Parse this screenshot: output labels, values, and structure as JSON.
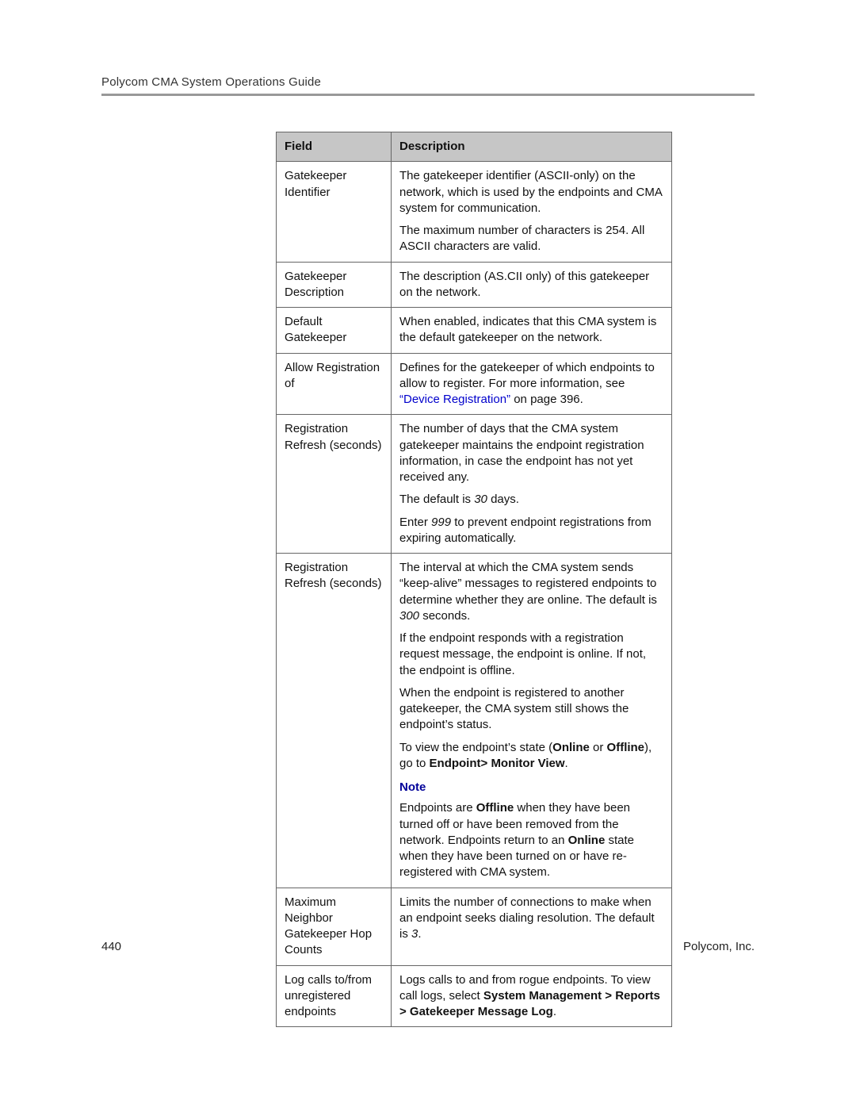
{
  "document": {
    "header_title": "Polycom CMA System Operations Guide",
    "page_number": "440",
    "footer_company": "Polycom, Inc."
  },
  "table": {
    "header": {
      "field": "Field",
      "description": "Description"
    },
    "border_color": "#666666",
    "header_bg": "#c6c6c6",
    "font_size_pt": 11,
    "rows": [
      {
        "field": "Gatekeeper Identifier",
        "desc_parts": [
          {
            "t": "The gatekeeper identifier (ASCII-only) on the network, which is used by the endpoints and CMA system for communication."
          },
          {
            "t": "The maximum number of characters is 254. All ASCII characters are valid."
          }
        ]
      },
      {
        "field": "Gatekeeper Description",
        "desc_parts": [
          {
            "t": "The description (AS.CII only) of this gatekeeper on the network."
          }
        ]
      },
      {
        "field": "Default Gatekeeper",
        "desc_parts": [
          {
            "t": "When enabled, indicates that this CMA system is the default gatekeeper on the network."
          }
        ]
      },
      {
        "field": "Allow Registration of",
        "desc_parts": [
          {
            "t": "Defines for the gatekeeper of which endpoints to allow to register. For more information, see ",
            "link": "“Device Registration”",
            "after_link": " on page 396."
          }
        ]
      },
      {
        "field": "Registration Refresh (seconds)",
        "desc_parts": [
          {
            "t": "The number of days that the CMA system gatekeeper maintains the endpoint registration information, in case the endpoint has not yet received any."
          },
          {
            "pre": "The default is ",
            "italic": "30",
            "post": " days."
          },
          {
            "pre": "Enter ",
            "italic": "999",
            "post": " to prevent endpoint registrations from expiring automatically."
          }
        ]
      },
      {
        "field": "Registration Refresh (seconds)",
        "desc_parts": [
          {
            "pre": "The interval at which the CMA system sends “keep-alive” messages to registered endpoints to determine whether they are online. The default is ",
            "italic": "300",
            "post": " seconds."
          },
          {
            "t": "If the endpoint responds with a registration request message, the endpoint is online. If not, the endpoint is offline."
          },
          {
            "t": "When the endpoint is registered to another gatekeeper, the CMA system still shows the endpoint’s status."
          },
          {
            "pre": "To view the endpoint’s state (",
            "bold1": "Online",
            "mid1": " or ",
            "bold2": "Offline",
            "mid2": "), go to ",
            "bold3": "Endpoint> Monitor View",
            "post": "."
          },
          {
            "note_label": "Note"
          },
          {
            "pre": "Endpoints are ",
            "bold1": "Offline",
            "mid1": " when they have been turned off or have been removed from the network. Endpoints return to an ",
            "bold2": "Online",
            "mid2": " state when they have been turned on or have re-registered with CMA system."
          }
        ]
      },
      {
        "field": "Maximum Neighbor Gatekeeper Hop Counts",
        "desc_parts": [
          {
            "pre": "Limits the number of connections to make when an endpoint seeks dialing resolution. The default is ",
            "italic": "3",
            "post": "."
          }
        ]
      },
      {
        "field": "Log calls to/from unregistered endpoints",
        "desc_parts": [
          {
            "pre": "Logs calls to and from rogue endpoints. To view call logs, select ",
            "bold1": "System Management > Reports > Gatekeeper Message Log",
            "post": "."
          }
        ]
      }
    ]
  }
}
